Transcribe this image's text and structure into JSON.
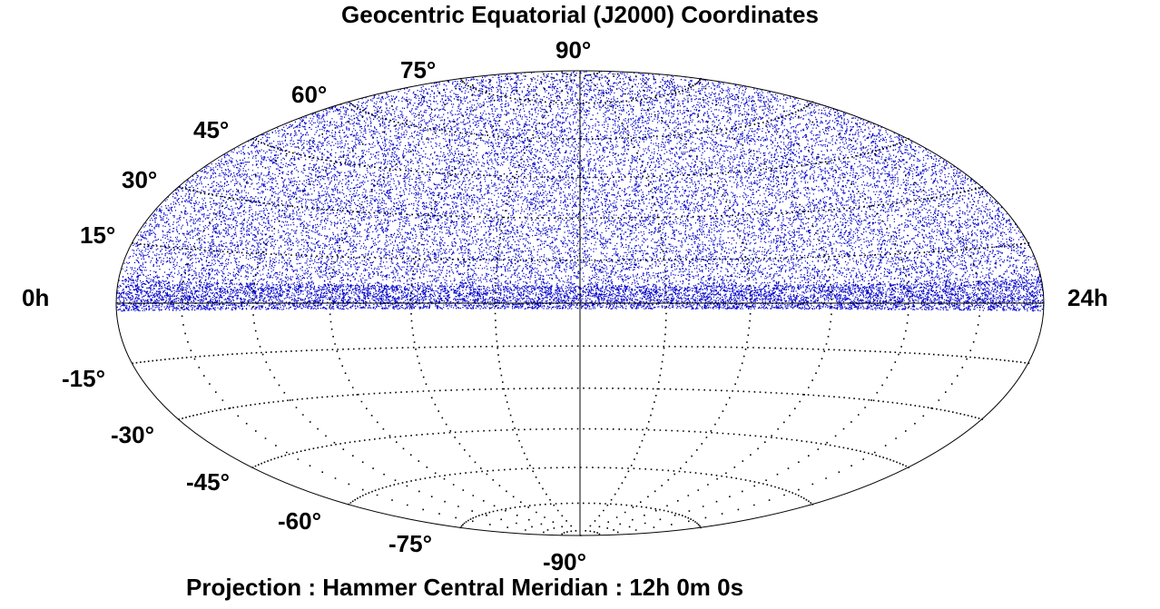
{
  "title": "Geocentric Equatorial (J2000)  Coordinates",
  "footer": "Projection : Hammer   Central Meridian : 12h 0m 0s",
  "projection": "Hammer",
  "central_meridian": "12h 0m 0s",
  "ra_labels": {
    "left": "0h",
    "right": "24h"
  },
  "dec_labels": {
    "north_pole": "90°",
    "south_pole": "-90°",
    "p75": "75°",
    "p60": "60°",
    "p45": "45°",
    "p30": "30°",
    "p15": "15°",
    "m15": "-15°",
    "m30": "-30°",
    "m45": "-45°",
    "m60": "-60°",
    "m75": "-75°"
  },
  "colors": {
    "points": "#0000cc",
    "outline": "#000000",
    "background": "#ffffff"
  },
  "grid": {
    "dec_step_deg": 15,
    "ra_step_hours": 2,
    "style": "dotted"
  },
  "coverage": {
    "dec_min_deg": -2,
    "dec_max_deg": 90
  }
}
